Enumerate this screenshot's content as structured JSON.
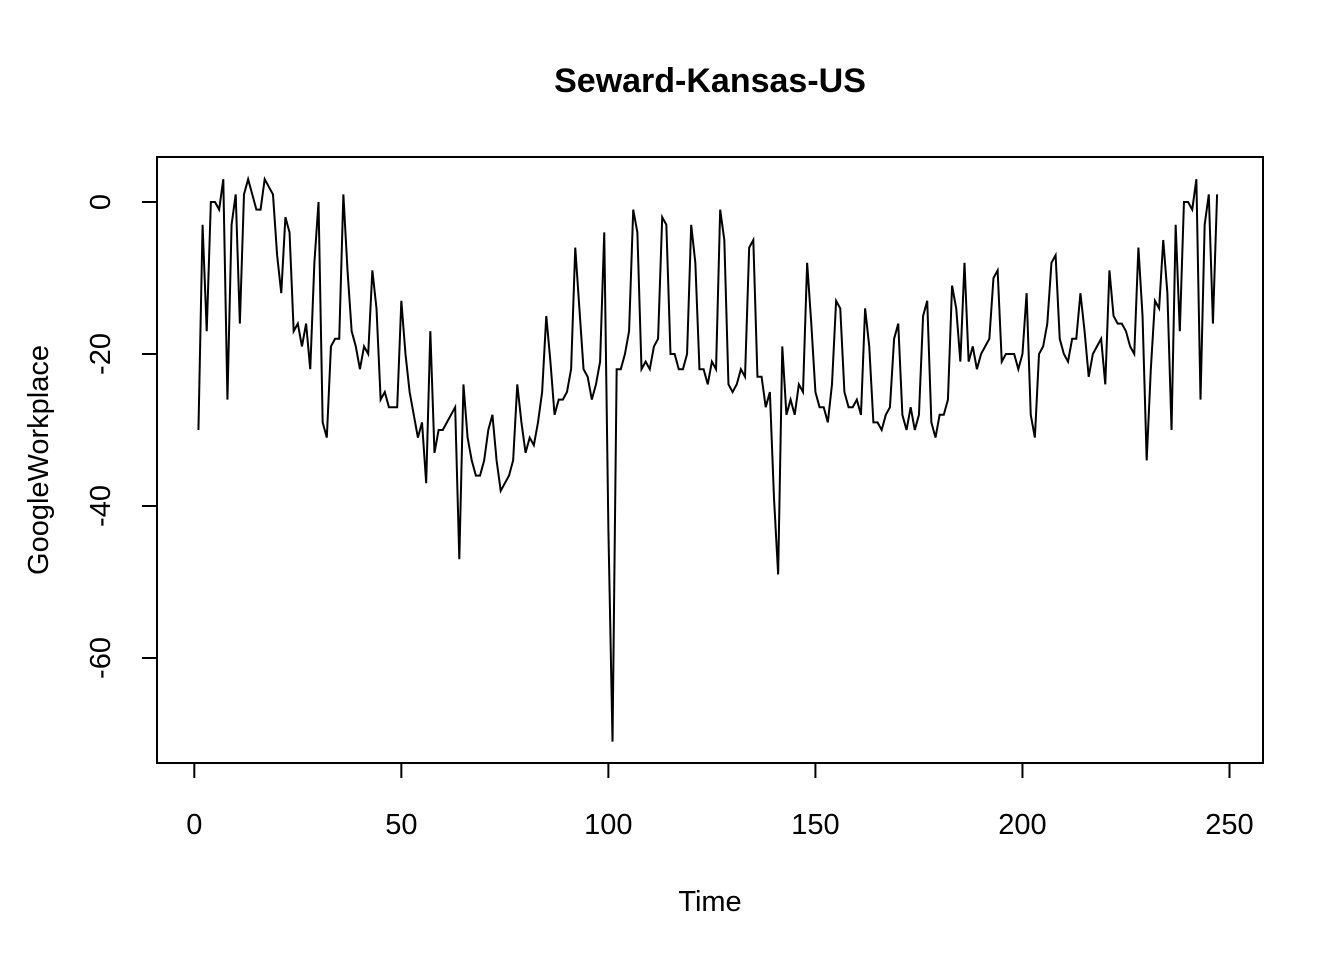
{
  "chart_data": {
    "type": "line",
    "title": "Seward-Kansas-US",
    "xlabel": "Time",
    "ylabel": "GoogleWorkplace",
    "xlim": [
      0,
      250
    ],
    "ylim": [
      -70,
      0
    ],
    "x_ticks": [
      "0",
      "50",
      "100",
      "150",
      "200",
      "250"
    ],
    "x_tick_values": [
      0,
      50,
      100,
      150,
      200,
      250
    ],
    "y_ticks": [
      "0",
      "-20",
      "-40",
      "-60"
    ],
    "y_tick_values": [
      0,
      -20,
      -40,
      -60
    ],
    "grid": false,
    "legend": "none",
    "color": "#000000",
    "series": [
      {
        "x_start": 1,
        "values": [
          -30,
          -3,
          -17,
          0,
          0,
          -1,
          3,
          -26,
          -3,
          1,
          -16,
          1,
          3,
          1,
          -1,
          -1,
          3,
          2,
          1,
          -7,
          -12,
          -2,
          -4,
          -17,
          -16,
          -19,
          -16,
          -22,
          -8,
          0,
          -29,
          -31,
          -19,
          -18,
          -18,
          1,
          -9,
          -17,
          -19,
          -22,
          -19,
          -20,
          -9,
          -14,
          -26,
          -25,
          -27,
          -27,
          -27,
          -13,
          -20,
          -25,
          -28,
          -31,
          -29,
          -37,
          -17,
          -33,
          -30,
          -30,
          -29,
          -28,
          -27,
          -47,
          -24,
          -31,
          -34,
          -36,
          -36,
          -34,
          -30,
          -28,
          -34,
          -38,
          -37,
          -36,
          -34,
          -24,
          -29,
          -33,
          -31,
          -32,
          -29,
          -25,
          -15,
          -21,
          -28,
          -26,
          -26,
          -25,
          -22,
          -6,
          -14,
          -22,
          -23,
          -26,
          -24,
          -21,
          -4,
          -43,
          -71,
          -22,
          -22,
          -20,
          -17,
          -1,
          -4,
          -22,
          -21,
          -22,
          -19,
          -18,
          -2,
          -3,
          -20,
          -20,
          -22,
          -22,
          -20,
          -3,
          -8,
          -22,
          -22,
          -24,
          -21,
          -22,
          -1,
          -5,
          -24,
          -25,
          -24,
          -22,
          -23,
          -6,
          -5,
          -23,
          -23,
          -27,
          -25,
          -39,
          -49,
          -19,
          -28,
          -26,
          -28,
          -24,
          -25,
          -8,
          -16,
          -25,
          -27,
          -27,
          -29,
          -24,
          -13,
          -14,
          -25,
          -27,
          -27,
          -26,
          -28,
          -14,
          -19,
          -29,
          -29,
          -30,
          -28,
          -27,
          -18,
          -16,
          -28,
          -30,
          -27,
          -30,
          -28,
          -15,
          -13,
          -29,
          -31,
          -28,
          -28,
          -26,
          -11,
          -14,
          -21,
          -8,
          -21,
          -19,
          -22,
          -20,
          -19,
          -18,
          -10,
          -9,
          -21,
          -20,
          -20,
          -20,
          -22,
          -20,
          -12,
          -28,
          -31,
          -20,
          -19,
          -16,
          -8,
          -7,
          -18,
          -20,
          -21,
          -18,
          -18,
          -12,
          -17,
          -23,
          -20,
          -19,
          -18,
          -24,
          -9,
          -15,
          -16,
          -16,
          -17,
          -19,
          -20,
          -6,
          -15,
          -34,
          -22,
          -13,
          -14,
          -5,
          -12,
          -30,
          -3,
          -17,
          0,
          0,
          -1,
          3,
          -26,
          -3,
          1,
          -16,
          1
        ]
      }
    ]
  }
}
